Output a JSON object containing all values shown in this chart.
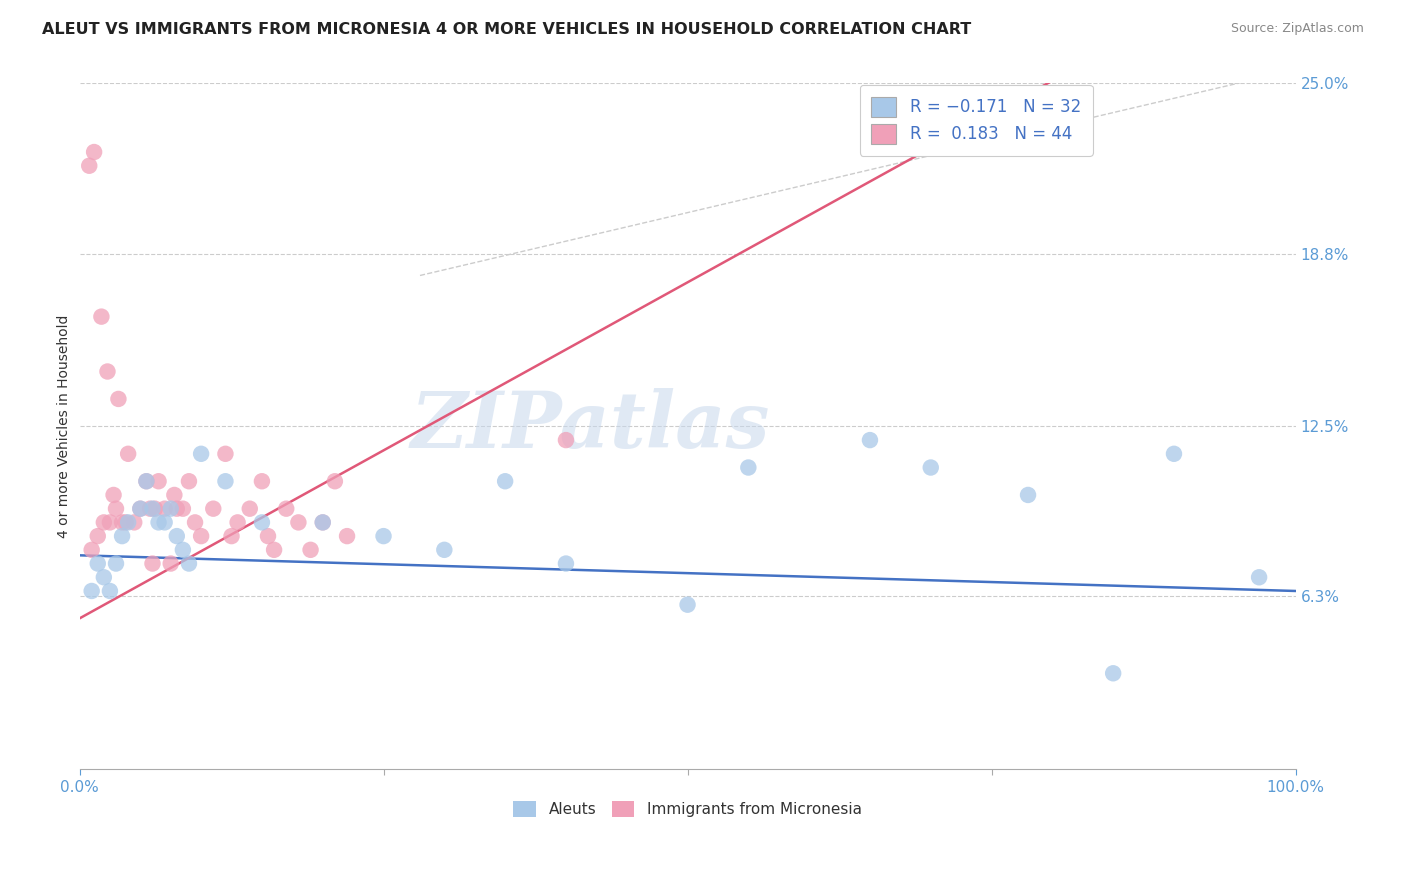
{
  "title": "ALEUT VS IMMIGRANTS FROM MICRONESIA 4 OR MORE VEHICLES IN HOUSEHOLD CORRELATION CHART",
  "source": "Source: ZipAtlas.com",
  "ylabel": "4 or more Vehicles in Household",
  "xlim": [
    0,
    100
  ],
  "ylim": [
    0,
    25
  ],
  "ytick_vals": [
    6.3,
    12.5,
    18.8,
    25.0
  ],
  "ytick_labels": [
    "6.3%",
    "12.5%",
    "18.8%",
    "25.0%"
  ],
  "xtick_vals": [
    0,
    100
  ],
  "xtick_labels": [
    "0.0%",
    "100.0%"
  ],
  "legend_label1": "Aleuts",
  "legend_label2": "Immigrants from Micronesia",
  "aleuts_color": "#a8c8e8",
  "micronesia_color": "#f0a0b8",
  "aleuts_line_color": "#4472c4",
  "micronesia_line_color": "#e05878",
  "background_color": "#ffffff",
  "grid_color": "#cccccc",
  "tick_color": "#5b9bd5",
  "watermark": "ZIPatlas",
  "watermark_color_zip": "#c8d8e8",
  "watermark_color_atlas": "#a8c0e0",
  "aleuts_x": [
    1.0,
    1.5,
    2.0,
    2.5,
    3.0,
    3.5,
    4.0,
    5.0,
    5.5,
    6.0,
    6.5,
    7.0,
    7.5,
    8.0,
    8.5,
    9.0,
    10.0,
    12.0,
    15.0,
    20.0,
    25.0,
    30.0,
    35.0,
    40.0,
    50.0,
    55.0,
    65.0,
    70.0,
    78.0,
    85.0,
    90.0,
    97.0
  ],
  "aleuts_y": [
    6.5,
    7.5,
    7.0,
    6.5,
    7.5,
    8.5,
    9.0,
    9.5,
    10.5,
    9.5,
    9.0,
    9.0,
    9.5,
    8.5,
    8.0,
    7.5,
    11.5,
    10.5,
    9.0,
    9.0,
    8.5,
    8.0,
    10.5,
    7.5,
    6.0,
    11.0,
    12.0,
    11.0,
    10.0,
    3.5,
    11.5,
    7.0
  ],
  "micronesia_x": [
    0.8,
    1.2,
    1.5,
    1.8,
    2.0,
    2.3,
    2.5,
    2.8,
    3.0,
    3.2,
    3.5,
    3.8,
    4.0,
    4.5,
    5.0,
    5.5,
    6.0,
    6.2,
    6.5,
    7.0,
    7.5,
    7.8,
    8.0,
    8.5,
    9.0,
    9.5,
    10.0,
    11.0,
    12.0,
    12.5,
    13.0,
    14.0,
    15.0,
    15.5,
    16.0,
    17.0,
    18.0,
    19.0,
    20.0,
    21.0,
    22.0,
    40.0,
    1.0,
    5.8
  ],
  "micronesia_y": [
    22.0,
    22.5,
    8.5,
    16.5,
    9.0,
    14.5,
    9.0,
    10.0,
    9.5,
    13.5,
    9.0,
    9.0,
    11.5,
    9.0,
    9.5,
    10.5,
    7.5,
    9.5,
    10.5,
    9.5,
    7.5,
    10.0,
    9.5,
    9.5,
    10.5,
    9.0,
    8.5,
    9.5,
    11.5,
    8.5,
    9.0,
    9.5,
    10.5,
    8.5,
    8.0,
    9.5,
    9.0,
    8.0,
    9.0,
    10.5,
    8.5,
    12.0,
    8.0,
    9.5
  ],
  "ref_line_color": "#bbbbbb"
}
